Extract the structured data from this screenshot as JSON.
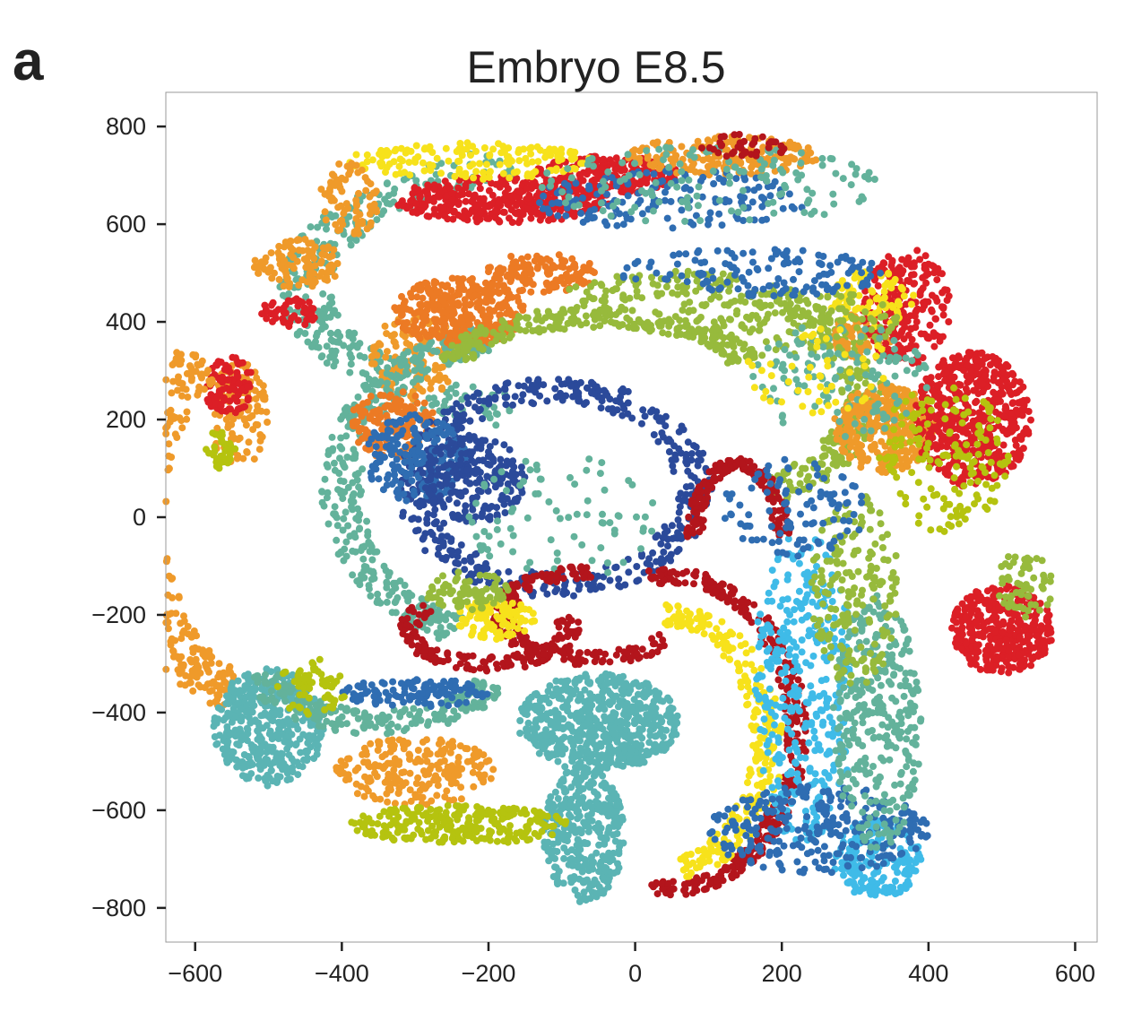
{
  "panel": {
    "label": "a"
  },
  "chart_data": {
    "type": "scatter",
    "title": "Embryo E8.5",
    "xlabel": "",
    "ylabel": "",
    "xlim": [
      -640,
      630
    ],
    "ylim": [
      -870,
      870
    ],
    "x_ticks": [
      -600,
      -400,
      -200,
      0,
      200,
      400,
      600
    ],
    "y_ticks": [
      800,
      600,
      400,
      200,
      0,
      -200,
      -400,
      -600,
      -800
    ],
    "x_tick_labels": [
      "−600",
      "−400",
      "−200",
      "0",
      "200",
      "400",
      "600"
    ],
    "y_tick_labels": [
      "800",
      "600",
      "400",
      "200",
      "0",
      "−200",
      "−400",
      "−600",
      "−800"
    ],
    "grid": false,
    "legend": "none",
    "colors": {
      "red": "#dc1f26",
      "dark_red": "#b3151c",
      "orange": "#ec7a24",
      "light_orange": "#ef9a2a",
      "yellow": "#f7e21b",
      "yellow_green": "#b5c30f",
      "green": "#97ba3c",
      "teal": "#63b29b",
      "cyan_teal": "#5bb4b4",
      "sky_blue": "#3fbbe8",
      "blue": "#2f6db2",
      "navy": "#2b4a9a"
    },
    "regions": [
      {
        "color": "teal",
        "cx": -20,
        "cy": 470,
        "rx": 430,
        "ry": 270,
        "a0": 110,
        "a1": 250,
        "w": 35,
        "n": 320
      },
      {
        "color": "red",
        "cx": -180,
        "cy": 650,
        "rx": 150,
        "ry": 48,
        "n": 380
      },
      {
        "color": "red",
        "cx": -40,
        "cy": 700,
        "rx": 100,
        "ry": 40,
        "n": 200
      },
      {
        "color": "yellow",
        "cx": -220,
        "cy": 730,
        "rx": 170,
        "ry": 38,
        "n": 160
      },
      {
        "color": "light_orange",
        "cx": 120,
        "cy": 740,
        "rx": 130,
        "ry": 40,
        "n": 200
      },
      {
        "color": "light_orange",
        "cx": -390,
        "cy": 650,
        "rx": 40,
        "ry": 80,
        "n": 80
      },
      {
        "color": "blue",
        "cx": 50,
        "cy": 650,
        "rx": 190,
        "ry": 60,
        "n": 160
      },
      {
        "color": "teal",
        "cx": 100,
        "cy": 680,
        "rx": 240,
        "ry": 80,
        "n": 140
      },
      {
        "color": "dark_red",
        "cx": 150,
        "cy": 760,
        "rx": 60,
        "ry": 25,
        "n": 40
      },
      {
        "color": "light_orange",
        "cx": -460,
        "cy": 520,
        "rx": 60,
        "ry": 50,
        "n": 110
      },
      {
        "color": "red",
        "cx": -470,
        "cy": 420,
        "rx": 40,
        "ry": 30,
        "n": 50
      },
      {
        "color": "light_orange",
        "cx": -540,
        "cy": 210,
        "rx": 40,
        "ry": 110,
        "n": 110
      },
      {
        "color": "red",
        "cx": -555,
        "cy": 270,
        "rx": 35,
        "ry": 60,
        "n": 100
      },
      {
        "color": "yellow_green",
        "cx": -565,
        "cy": 140,
        "rx": 20,
        "ry": 40,
        "n": 40
      },
      {
        "color": "light_orange",
        "cx": -500,
        "cy": 0,
        "rx": 180,
        "ry": 370,
        "a0": 120,
        "a1": 255,
        "w": 40,
        "n": 420
      },
      {
        "color": "light_orange",
        "cx": -300,
        "cy": 330,
        "rx": 60,
        "ry": 90,
        "n": 120
      },
      {
        "color": "teal",
        "cx": -160,
        "cy": 60,
        "rx": 240,
        "ry": 310,
        "a0": 100,
        "a1": 250,
        "w": 28,
        "n": 380
      },
      {
        "color": "orange",
        "cx": -240,
        "cy": 420,
        "rx": 90,
        "ry": 70,
        "n": 320
      },
      {
        "color": "orange",
        "cx": -330,
        "cy": 190,
        "rx": 60,
        "ry": 70,
        "n": 160
      },
      {
        "color": "orange",
        "cx": -130,
        "cy": 500,
        "rx": 80,
        "ry": 40,
        "n": 120
      },
      {
        "color": "navy",
        "cx": -110,
        "cy": 60,
        "rx": 190,
        "ry": 200,
        "a0": 0,
        "a1": 360,
        "w": 25,
        "n": 480
      },
      {
        "color": "blue",
        "cx": -300,
        "cy": 120,
        "rx": 70,
        "ry": 90,
        "n": 200
      },
      {
        "color": "navy",
        "cx": -220,
        "cy": 80,
        "rx": 70,
        "ry": 90,
        "n": 220
      },
      {
        "color": "green",
        "cx": -50,
        "cy": 300,
        "rx": 200,
        "ry": 110,
        "a0": 10,
        "a1": 170,
        "w": 22,
        "n": 260
      },
      {
        "color": "green",
        "cx": 50,
        "cy": 250,
        "rx": 260,
        "ry": 230,
        "a0": -60,
        "a1": 120,
        "w": 28,
        "n": 340
      },
      {
        "color": "teal",
        "cx": -100,
        "cy": 0,
        "rx": 130,
        "ry": 130,
        "n": 80
      },
      {
        "color": "dark_red",
        "cx": 50,
        "cy": -440,
        "rx": 170,
        "ry": 320,
        "a0": -100,
        "a1": 100,
        "w": 15,
        "n": 360
      },
      {
        "color": "dark_red",
        "cx": -60,
        "cy": -200,
        "rx": 120,
        "ry": 90,
        "a0": 90,
        "a1": 330,
        "w": 15,
        "n": 200
      },
      {
        "color": "dark_red",
        "cx": -200,
        "cy": -230,
        "rx": 110,
        "ry": 70,
        "a0": 140,
        "a1": 380,
        "w": 15,
        "n": 160
      },
      {
        "color": "yellow",
        "cx": 40,
        "cy": -460,
        "rx": 140,
        "ry": 260,
        "a0": -80,
        "a1": 90,
        "w": 22,
        "n": 260
      },
      {
        "color": "yellow",
        "cx": -190,
        "cy": -210,
        "rx": 55,
        "ry": 40,
        "n": 100
      },
      {
        "color": "green",
        "cx": -230,
        "cy": -150,
        "rx": 60,
        "ry": 40,
        "n": 80
      },
      {
        "color": "cyan_teal",
        "cx": -50,
        "cy": -420,
        "rx": 110,
        "ry": 100,
        "n": 600
      },
      {
        "color": "cyan_teal",
        "cx": -70,
        "cy": -650,
        "rx": 55,
        "ry": 140,
        "n": 340
      },
      {
        "color": "cyan_teal",
        "cx": -500,
        "cy": -430,
        "rx": 75,
        "ry": 120,
        "n": 420
      },
      {
        "color": "teal",
        "cx": -350,
        "cy": -300,
        "rx": 160,
        "ry": 120,
        "a0": 190,
        "a1": 340,
        "w": 25,
        "n": 200
      },
      {
        "color": "blue",
        "cx": -300,
        "cy": -360,
        "rx": 100,
        "ry": 30,
        "n": 120
      },
      {
        "color": "light_orange",
        "cx": -300,
        "cy": -520,
        "rx": 110,
        "ry": 70,
        "n": 220
      },
      {
        "color": "yellow_green",
        "cx": -240,
        "cy": -630,
        "rx": 150,
        "ry": 40,
        "n": 260
      },
      {
        "color": "yellow_green",
        "cx": -440,
        "cy": -350,
        "rx": 50,
        "ry": 60,
        "n": 60
      },
      {
        "color": "sky_blue",
        "cx": 230,
        "cy": -350,
        "rx": 70,
        "ry": 320,
        "n": 360
      },
      {
        "color": "sky_blue",
        "cx": 330,
        "cy": -700,
        "rx": 60,
        "ry": 80,
        "n": 180
      },
      {
        "color": "blue",
        "cx": 250,
        "cy": -640,
        "rx": 150,
        "ry": 90,
        "n": 280
      },
      {
        "color": "teal",
        "cx": 330,
        "cy": -420,
        "rx": 60,
        "ry": 260,
        "n": 320
      },
      {
        "color": "green",
        "cx": 300,
        "cy": -150,
        "rx": 60,
        "ry": 200,
        "n": 180
      },
      {
        "color": "dark_red",
        "cx": 140,
        "cy": -40,
        "rx": 60,
        "ry": 150,
        "a0": 0,
        "a1": 180,
        "w": 12,
        "n": 180
      },
      {
        "color": "light_orange",
        "cx": 340,
        "cy": 180,
        "rx": 70,
        "ry": 90,
        "n": 300
      },
      {
        "color": "light_orange",
        "cx": 310,
        "cy": 370,
        "rx": 40,
        "ry": 50,
        "n": 80
      },
      {
        "color": "red",
        "cx": 460,
        "cy": 200,
        "rx": 80,
        "ry": 140,
        "n": 520
      },
      {
        "color": "red",
        "cx": 370,
        "cy": 430,
        "rx": 60,
        "ry": 120,
        "n": 240
      },
      {
        "color": "yellow",
        "cx": 320,
        "cy": 450,
        "rx": 60,
        "ry": 60,
        "n": 80
      },
      {
        "color": "yellow_green",
        "cx": 420,
        "cy": 120,
        "rx": 90,
        "ry": 150,
        "n": 160
      },
      {
        "color": "red",
        "cx": 500,
        "cy": -230,
        "rx": 70,
        "ry": 90,
        "n": 380
      },
      {
        "color": "green",
        "cx": 530,
        "cy": -140,
        "rx": 40,
        "ry": 70,
        "n": 60
      },
      {
        "color": "blue",
        "cx": 220,
        "cy": 20,
        "rx": 100,
        "ry": 100,
        "n": 100
      },
      {
        "color": "green",
        "cx": 200,
        "cy": 400,
        "rx": 160,
        "ry": 70,
        "n": 160
      },
      {
        "color": "blue",
        "cx": 160,
        "cy": 500,
        "rx": 180,
        "ry": 50,
        "n": 140
      },
      {
        "color": "teal",
        "cx": 280,
        "cy": 280,
        "rx": 120,
        "ry": 120,
        "n": 120
      },
      {
        "color": "yellow",
        "cx": 250,
        "cy": 300,
        "rx": 100,
        "ry": 90,
        "n": 50
      }
    ]
  }
}
